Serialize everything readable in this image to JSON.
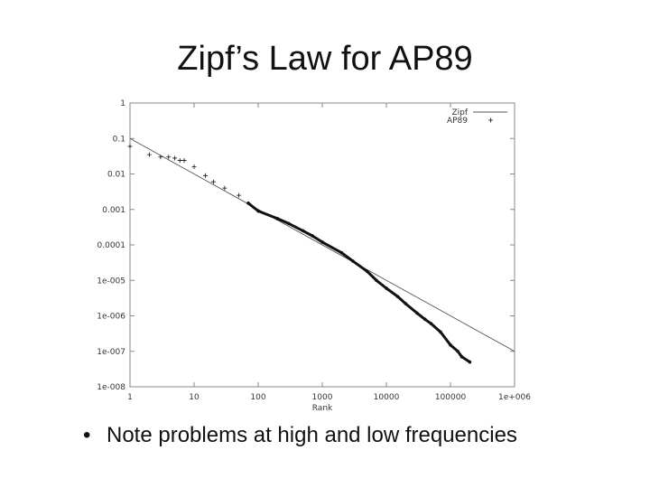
{
  "slide": {
    "title": "Zipf’s Law for AP89",
    "bullet": "Note problems at high and low frequencies"
  },
  "chart_data": {
    "type": "scatter",
    "title": "",
    "xlabel": "Rank",
    "ylabel": "",
    "xscale": "log",
    "yscale": "log",
    "xlim": [
      1,
      1000000
    ],
    "ylim": [
      1e-08,
      1
    ],
    "x_ticks": [
      1,
      10,
      100,
      1000,
      10000,
      100000,
      1000000
    ],
    "x_tick_labels": [
      "1",
      "10",
      "100",
      "1000",
      "10000",
      "100000",
      "1e+006"
    ],
    "y_ticks": [
      1,
      0.1,
      0.01,
      0.001,
      0.0001,
      1e-05,
      1e-06,
      1e-07,
      1e-08
    ],
    "y_tick_labels": [
      "1",
      "0.1",
      "0.01",
      "0.001",
      "0.0001",
      "1e-005",
      "1e-006",
      "1e-007",
      "1e-008"
    ],
    "legend_position": "top-right",
    "series": [
      {
        "name": "Zipf",
        "style": "line",
        "color": "#555555",
        "x": [
          1,
          1000000
        ],
        "y": [
          0.1,
          1e-07
        ]
      },
      {
        "name": "AP89",
        "style": "points",
        "color": "#111111",
        "x": [
          1,
          2,
          3,
          4,
          5,
          6,
          7,
          10,
          15,
          20,
          30,
          50,
          70,
          100,
          200,
          300,
          500,
          700,
          1000,
          2000,
          3000,
          5000,
          7000,
          10000,
          15000,
          20000,
          30000,
          40000,
          50000,
          70000,
          100000,
          130000,
          150000,
          200000
        ],
        "y": [
          0.06,
          0.035,
          0.03,
          0.03,
          0.028,
          0.024,
          0.024,
          0.016,
          0.009,
          0.006,
          0.004,
          0.0025,
          0.0015,
          0.0009,
          0.00055,
          0.0004,
          0.00025,
          0.00018,
          0.00012,
          6e-05,
          3.5e-05,
          1.8e-05,
          1e-05,
          6e-06,
          3.5e-06,
          2.2e-06,
          1.2e-06,
          8e-07,
          6e-07,
          3.5e-07,
          1.5e-07,
          1e-07,
          7e-08,
          5e-08
        ]
      }
    ]
  }
}
